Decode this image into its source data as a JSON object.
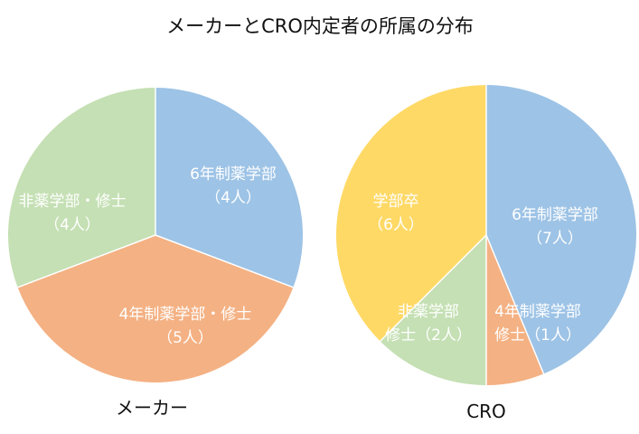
{
  "title": "メーカーとCRO内定者の所属の分布",
  "colors": {
    "blue": "#9DC3E6",
    "orange": "#F4B183",
    "green": "#C5E0B4",
    "yellow": "#FFD966",
    "outline": "#ffffff",
    "text": "#111111",
    "label_text": "#ffffff"
  },
  "chart_data": [
    {
      "type": "pie",
      "label": "メーカー",
      "categories": [
        "6年制薬学部",
        "4年制薬学部・修士",
        "非薬学部・修士"
      ],
      "values": [
        4,
        5,
        4
      ],
      "data_labels": [
        [
          "6年制薬学部",
          "（4人）"
        ],
        [
          "4年制薬学部・修士",
          "（5人）"
        ],
        [
          "非薬学部・修士",
          "（4人）"
        ]
      ],
      "colors": [
        "#9DC3E6",
        "#F4B183",
        "#C5E0B4"
      ]
    },
    {
      "type": "pie",
      "label": "CRO",
      "categories": [
        "6年制薬学部",
        "4年制薬学部修士",
        "非薬学部修士",
        "学部卒"
      ],
      "values": [
        7,
        1,
        2,
        6
      ],
      "data_labels": [
        [
          "6年制薬学部",
          "（7人）"
        ],
        [
          "4年制薬学部",
          "修士（1人）"
        ],
        [
          "非薬学部",
          "修士（2人）"
        ],
        [
          "学部卒",
          "（6人）"
        ]
      ],
      "colors": [
        "#9DC3E6",
        "#F4B183",
        "#C5E0B4",
        "#FFD966"
      ]
    }
  ]
}
